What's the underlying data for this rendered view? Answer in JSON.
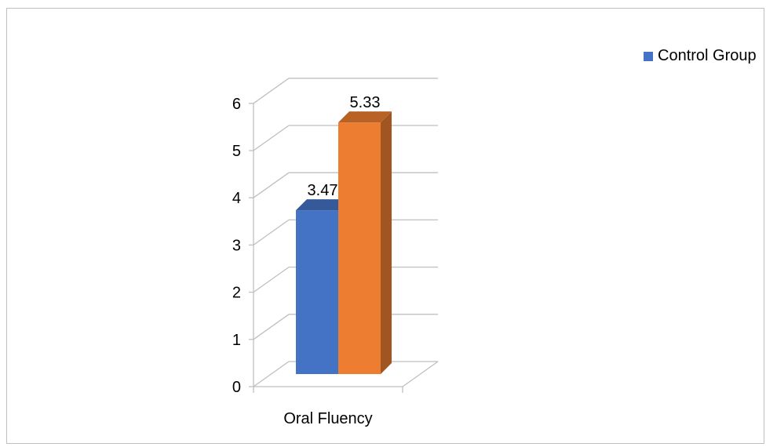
{
  "chart_data": {
    "type": "bar",
    "categories": [
      "Oral Fluency"
    ],
    "series": [
      {
        "name": "Control Group",
        "values": [
          3.47
        ],
        "color": "#4472c4"
      },
      {
        "values": [
          5.33
        ],
        "color": "#ed7d31"
      }
    ],
    "data_labels": [
      "3.47",
      "5.33"
    ],
    "ylim": [
      0,
      6
    ],
    "yticks": [
      "0",
      "1",
      "2",
      "3",
      "4",
      "5",
      "6"
    ],
    "grid": true,
    "three_d": true,
    "legend_position": "top-right"
  },
  "legend": {
    "label": "Control Group",
    "color": "#4472c4"
  }
}
